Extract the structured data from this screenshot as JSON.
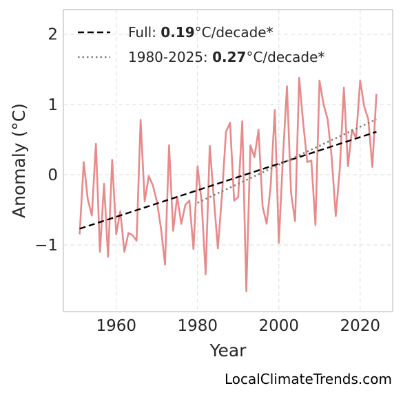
{
  "chart_data": {
    "type": "line",
    "title": "",
    "xlabel": "Year",
    "ylabel": "Anomaly (°C)",
    "xlim": [
      1947,
      2028
    ],
    "ylim": [
      -1.95,
      2.35
    ],
    "xticks": [
      1960,
      1980,
      2000,
      2020
    ],
    "yticks": [
      -1,
      0,
      1,
      2
    ],
    "ytick_labels": [
      "−1",
      "0",
      "1",
      "2"
    ],
    "grid": true,
    "legend_position": "top-left",
    "series": [
      {
        "name": "Anomaly",
        "color": "#e88a8a",
        "style": "solid",
        "x": [
          1951,
          1952,
          1953,
          1954,
          1955,
          1956,
          1957,
          1958,
          1959,
          1960,
          1961,
          1962,
          1963,
          1964,
          1965,
          1966,
          1967,
          1968,
          1969,
          1970,
          1971,
          1972,
          1973,
          1974,
          1975,
          1976,
          1977,
          1978,
          1979,
          1980,
          1981,
          1982,
          1983,
          1984,
          1985,
          1986,
          1987,
          1988,
          1989,
          1990,
          1991,
          1992,
          1993,
          1994,
          1995,
          1996,
          1997,
          1998,
          1999,
          2000,
          2001,
          2002,
          2003,
          2004,
          2005,
          2006,
          2007,
          2008,
          2009,
          2010,
          2011,
          2012,
          2013,
          2014,
          2015,
          2016,
          2017,
          2018,
          2019,
          2020,
          2021,
          2022,
          2023,
          2024
        ],
        "y": [
          -0.85,
          0.18,
          -0.35,
          -0.58,
          0.44,
          -1.1,
          -0.13,
          -1.17,
          0.21,
          -0.85,
          -0.52,
          -1.1,
          -0.83,
          -0.86,
          -0.94,
          0.78,
          -0.38,
          -0.02,
          -0.15,
          -0.38,
          -0.76,
          -1.28,
          0.42,
          -0.8,
          -0.31,
          -0.7,
          -0.43,
          -0.37,
          -1.06,
          0.12,
          -0.38,
          -1.42,
          0.41,
          -0.33,
          -1.05,
          -0.3,
          0.61,
          0.74,
          -0.37,
          -0.32,
          0.76,
          -1.66,
          0.42,
          0.25,
          0.64,
          -0.45,
          -0.7,
          -0.15,
          0.92,
          -0.97,
          0.24,
          1.26,
          -0.26,
          -0.66,
          1.38,
          0.73,
          0.18,
          0.2,
          -0.72,
          1.34,
          1.0,
          0.79,
          0.25,
          -0.59,
          0.09,
          1.24,
          0.12,
          0.64,
          0.52,
          1.34,
          0.97,
          0.79,
          0.11,
          1.15
        ]
      },
      {
        "name": "Full",
        "color": "#000000",
        "style": "dashed",
        "x": [
          1951,
          2024
        ],
        "y": [
          -0.77,
          0.61
        ]
      },
      {
        "name": "1980-2025",
        "color": "#808080",
        "style": "dotted",
        "x": [
          1980,
          2024
        ],
        "y": [
          -0.4,
          0.79
        ]
      }
    ],
    "legend": [
      {
        "prefix": "Full: ",
        "value": "0.19",
        "suffix": "°C/decade*"
      },
      {
        "prefix": "1980-2025: ",
        "value": "0.27",
        "suffix": "°C/decade*"
      }
    ]
  },
  "credit": "LocalClimateTrends.com"
}
